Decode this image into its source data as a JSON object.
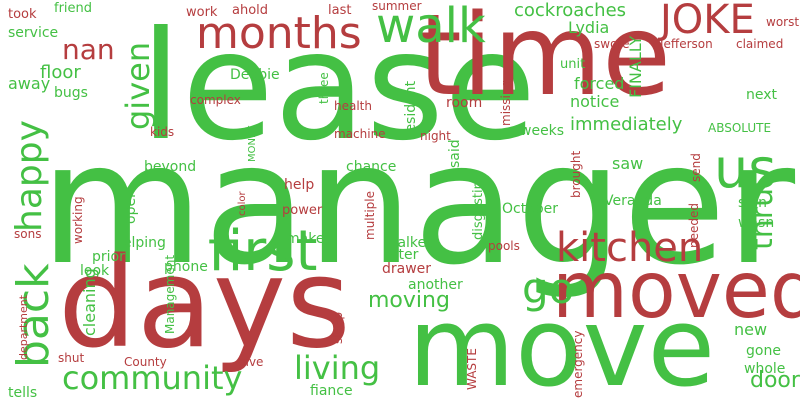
{
  "palette": {
    "green": "#44c044",
    "red": "#b53d3f"
  },
  "words": [
    {
      "text": "manager",
      "color": "green"
    },
    {
      "text": "lease",
      "color": "green"
    },
    {
      "text": "time",
      "color": "red"
    },
    {
      "text": "days",
      "color": "red"
    },
    {
      "text": "move",
      "color": "green"
    },
    {
      "text": "moved",
      "color": "red"
    },
    {
      "text": "first",
      "color": "green"
    },
    {
      "text": "months",
      "color": "red"
    },
    {
      "text": "walk",
      "color": "green"
    },
    {
      "text": "JOKE",
      "color": "red"
    },
    {
      "text": "us",
      "color": "green"
    },
    {
      "text": "kitchen",
      "color": "red"
    },
    {
      "text": "back",
      "color": "green"
    },
    {
      "text": "happy",
      "color": "green"
    },
    {
      "text": "community",
      "color": "green"
    },
    {
      "text": "living",
      "color": "green"
    },
    {
      "text": "given",
      "color": "green"
    },
    {
      "text": "nan",
      "color": "red"
    },
    {
      "text": "go",
      "color": "green"
    },
    {
      "text": "thru",
      "color": "green"
    },
    {
      "text": "door",
      "color": "green"
    },
    {
      "text": "cockroaches",
      "color": "green"
    },
    {
      "text": "moving",
      "color": "green"
    },
    {
      "text": "immediately",
      "color": "green"
    },
    {
      "text": "Lydia",
      "color": "green"
    },
    {
      "text": "forced",
      "color": "green"
    },
    {
      "text": "notice",
      "color": "green"
    },
    {
      "text": "floor",
      "color": "green"
    },
    {
      "text": "bugs",
      "color": "green"
    },
    {
      "text": "away",
      "color": "green"
    },
    {
      "text": "service",
      "color": "green"
    },
    {
      "text": "took",
      "color": "red"
    },
    {
      "text": "friend",
      "color": "green"
    },
    {
      "text": "work",
      "color": "red"
    },
    {
      "text": "ahold",
      "color": "red"
    },
    {
      "text": "last",
      "color": "red"
    },
    {
      "text": "summer",
      "color": "red"
    },
    {
      "text": "worst",
      "color": "red"
    },
    {
      "text": "claimed",
      "color": "red"
    },
    {
      "text": "Jefferson",
      "color": "red"
    },
    {
      "text": "swore",
      "color": "red"
    },
    {
      "text": "FINALLY",
      "color": "green"
    },
    {
      "text": "unit",
      "color": "green"
    },
    {
      "text": "resident",
      "color": "green"
    },
    {
      "text": "three",
      "color": "green"
    },
    {
      "text": "Debbie",
      "color": "green"
    },
    {
      "text": "complex",
      "color": "red"
    },
    {
      "text": "health",
      "color": "red"
    },
    {
      "text": "machine",
      "color": "red"
    },
    {
      "text": "kids",
      "color": "red"
    },
    {
      "text": "MONEY",
      "color": "green"
    },
    {
      "text": "color",
      "color": "red"
    },
    {
      "text": "beyond",
      "color": "green"
    },
    {
      "text": "chance",
      "color": "green"
    },
    {
      "text": "said",
      "color": "green"
    },
    {
      "text": "night",
      "color": "red"
    },
    {
      "text": "missing",
      "color": "red"
    },
    {
      "text": "weeks",
      "color": "green"
    },
    {
      "text": "room",
      "color": "red"
    },
    {
      "text": "later",
      "color": "green"
    },
    {
      "text": "ABSOLUTE",
      "color": "green"
    },
    {
      "text": "next",
      "color": "green"
    },
    {
      "text": "saw",
      "color": "green"
    },
    {
      "text": "send",
      "color": "red"
    },
    {
      "text": "brought",
      "color": "red"
    },
    {
      "text": "disgusting",
      "color": "green"
    },
    {
      "text": "Veranda",
      "color": "green"
    },
    {
      "text": "October",
      "color": "green"
    },
    {
      "text": "sign",
      "color": "green"
    },
    {
      "text": "wasn",
      "color": "green"
    },
    {
      "text": "needed",
      "color": "red"
    },
    {
      "text": "open",
      "color": "green"
    },
    {
      "text": "working",
      "color": "red"
    },
    {
      "text": "sons",
      "color": "red"
    },
    {
      "text": "help",
      "color": "red"
    },
    {
      "text": "power",
      "color": "red"
    },
    {
      "text": "multiple",
      "color": "red"
    },
    {
      "text": "walked",
      "color": "green"
    },
    {
      "text": "make",
      "color": "green"
    },
    {
      "text": "helping",
      "color": "green"
    },
    {
      "text": "prior",
      "color": "green"
    },
    {
      "text": "look",
      "color": "green"
    },
    {
      "text": "phone",
      "color": "green"
    },
    {
      "text": "cleaning",
      "color": "green"
    },
    {
      "text": "Management",
      "color": "green"
    },
    {
      "text": "drawer",
      "color": "red"
    },
    {
      "text": "another",
      "color": "green"
    },
    {
      "text": "pools",
      "color": "red"
    },
    {
      "text": "sleep",
      "color": "red"
    },
    {
      "text": "new",
      "color": "green"
    },
    {
      "text": "gone",
      "color": "green"
    },
    {
      "text": "whole",
      "color": "green"
    },
    {
      "text": "emergency",
      "color": "red"
    },
    {
      "text": "department",
      "color": "red"
    },
    {
      "text": "shut",
      "color": "red"
    },
    {
      "text": "County",
      "color": "red"
    },
    {
      "text": "give",
      "color": "red"
    },
    {
      "text": "WASTE",
      "color": "red"
    },
    {
      "text": "fiance",
      "color": "green"
    },
    {
      "text": "tells",
      "color": "green"
    }
  ]
}
